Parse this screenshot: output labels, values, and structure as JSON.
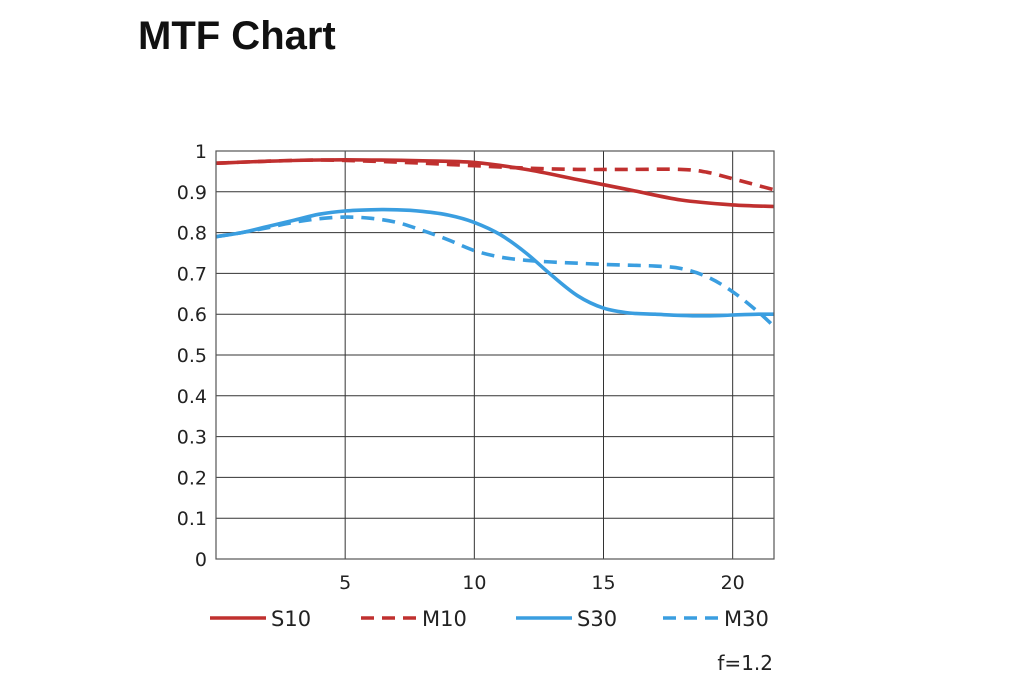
{
  "page": {
    "title": "MTF Chart"
  },
  "chart_data": {
    "type": "line",
    "title": "MTF Chart",
    "xlabel": "",
    "ylabel": "",
    "xlim": [
      0,
      21.6
    ],
    "ylim": [
      0,
      1
    ],
    "x_ticks": [
      5,
      10,
      15,
      20
    ],
    "y_ticks": [
      0,
      0.1,
      0.2,
      0.3,
      0.4,
      0.5,
      0.6,
      0.7,
      0.8,
      0.9,
      1
    ],
    "y_tick_labels": [
      "0",
      "0.1",
      "0.2",
      "0.3",
      "0.4",
      "0.5",
      "0.6",
      "0.7",
      "0.8",
      "0.9",
      "1"
    ],
    "grid": true,
    "legend_position": "bottom",
    "annotation": "f=1.2",
    "series": [
      {
        "name": "S10",
        "color": "#c0302f",
        "dash": "solid",
        "x": [
          0,
          2,
          4,
          6,
          8,
          10,
          12,
          14,
          16,
          18,
          20,
          21.6
        ],
        "y": [
          0.97,
          0.975,
          0.978,
          0.978,
          0.976,
          0.972,
          0.955,
          0.93,
          0.905,
          0.88,
          0.868,
          0.864
        ]
      },
      {
        "name": "M10",
        "color": "#c0302f",
        "dash": "dashed",
        "x": [
          0,
          2,
          4,
          6,
          8,
          10,
          12,
          14,
          16,
          18,
          19,
          20,
          21.6
        ],
        "y": [
          0.97,
          0.975,
          0.978,
          0.975,
          0.97,
          0.964,
          0.958,
          0.955,
          0.955,
          0.955,
          0.948,
          0.932,
          0.905
        ]
      },
      {
        "name": "S30",
        "color": "#3a9ee0",
        "dash": "solid",
        "x": [
          0,
          1,
          2,
          3,
          4,
          5,
          6,
          7,
          8,
          9,
          10,
          11,
          12,
          13,
          14,
          15,
          16,
          17,
          18,
          19,
          20,
          21,
          21.6
        ],
        "y": [
          0.79,
          0.8,
          0.815,
          0.83,
          0.845,
          0.853,
          0.856,
          0.856,
          0.852,
          0.843,
          0.825,
          0.795,
          0.75,
          0.695,
          0.645,
          0.615,
          0.603,
          0.6,
          0.597,
          0.596,
          0.598,
          0.6,
          0.6
        ]
      },
      {
        "name": "M30",
        "color": "#3a9ee0",
        "dash": "dashed",
        "x": [
          0,
          1,
          2,
          3,
          4,
          5,
          6,
          7,
          8,
          9,
          10,
          11,
          12,
          13,
          14,
          15,
          16,
          17,
          18,
          19,
          20,
          21,
          21.6
        ],
        "y": [
          0.79,
          0.8,
          0.812,
          0.825,
          0.834,
          0.838,
          0.835,
          0.825,
          0.805,
          0.782,
          0.756,
          0.74,
          0.732,
          0.728,
          0.725,
          0.722,
          0.72,
          0.718,
          0.712,
          0.692,
          0.655,
          0.605,
          0.57
        ]
      }
    ]
  }
}
